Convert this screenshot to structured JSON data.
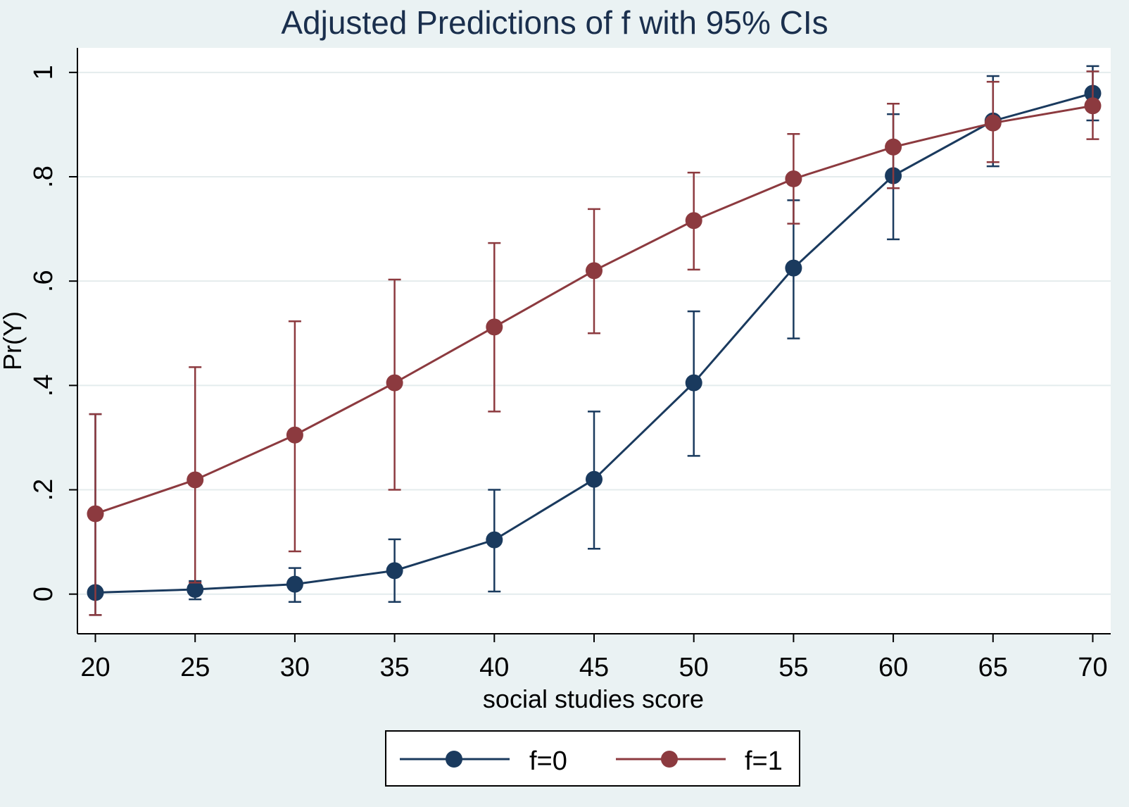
{
  "chart_data": {
    "type": "line",
    "title": "Adjusted Predictions of f with 95% CIs",
    "xlabel": "social studies score",
    "ylabel": "Pr(Y)",
    "x": [
      20,
      25,
      30,
      35,
      40,
      45,
      50,
      55,
      60,
      65,
      70
    ],
    "xticks": [
      20,
      25,
      30,
      35,
      40,
      45,
      50,
      55,
      60,
      65,
      70
    ],
    "xtick_labels": [
      "20",
      "25",
      "30",
      "35",
      "40",
      "45",
      "50",
      "55",
      "60",
      "65",
      "70"
    ],
    "yticks": [
      0,
      0.2,
      0.4,
      0.6,
      0.8,
      1
    ],
    "ytick_labels": [
      "0",
      ".2",
      ".4",
      ".6",
      ".8",
      "1"
    ],
    "xlim": [
      19.1,
      70.9
    ],
    "ylim": [
      -0.076,
      1.047
    ],
    "grid": true,
    "legend_position": "bottom",
    "series": [
      {
        "name": "f=0",
        "color": "#1a3a5e",
        "values": [
          0.003,
          0.009,
          0.019,
          0.045,
          0.104,
          0.22,
          0.405,
          0.625,
          0.802,
          0.907,
          0.96
        ],
        "ci_low": [
          -0.04,
          -0.01,
          -0.015,
          -0.015,
          0.005,
          0.087,
          0.265,
          0.49,
          0.68,
          0.82,
          0.908
        ],
        "ci_high": [
          0.345,
          0.025,
          0.05,
          0.105,
          0.2,
          0.35,
          0.542,
          0.755,
          0.92,
          0.993,
          1.012
        ]
      },
      {
        "name": "f=1",
        "color": "#8c3a3f",
        "values": [
          0.154,
          0.219,
          0.305,
          0.405,
          0.512,
          0.62,
          0.716,
          0.796,
          0.857,
          0.903,
          0.936
        ],
        "ci_low": [
          -0.04,
          0.022,
          0.082,
          0.2,
          0.35,
          0.5,
          0.622,
          0.71,
          0.778,
          0.828,
          0.872
        ],
        "ci_high": [
          0.345,
          0.435,
          0.523,
          0.603,
          0.673,
          0.738,
          0.808,
          0.882,
          0.94,
          0.982,
          1.002
        ]
      }
    ]
  }
}
